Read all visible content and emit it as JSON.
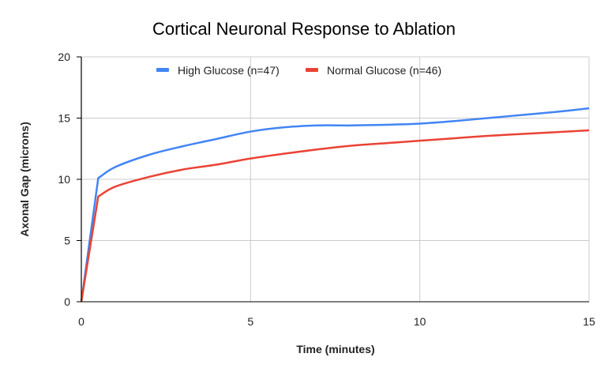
{
  "chart_data": {
    "type": "line",
    "title": "Cortical Neuronal Response to Ablation",
    "xlabel": "Time (minutes)",
    "ylabel": "Axonal Gap (microns)",
    "xlim": [
      0,
      15
    ],
    "ylim": [
      0,
      20
    ],
    "xticks": [
      "0",
      "5",
      "10",
      "15"
    ],
    "yticks": [
      "0",
      "5",
      "10",
      "15",
      "20"
    ],
    "grid": true,
    "legend_position": "top",
    "series": [
      {
        "name": "High Glucose (n=47)",
        "color": "#4285f4",
        "x": [
          0,
          0.5,
          1,
          2,
          3,
          4,
          5,
          6,
          7,
          8,
          9,
          10,
          11,
          12,
          13,
          14,
          15
        ],
        "y": [
          0,
          10.1,
          11.0,
          12.0,
          12.7,
          13.3,
          13.9,
          14.25,
          14.4,
          14.4,
          14.45,
          14.55,
          14.75,
          15.0,
          15.25,
          15.5,
          15.8
        ]
      },
      {
        "name": "Normal Glucose (n=46)",
        "color": "#ea4335",
        "x": [
          0,
          0.5,
          1,
          2,
          3,
          4,
          5,
          6,
          7,
          8,
          9,
          10,
          11,
          12,
          13,
          14,
          15
        ],
        "y": [
          0,
          8.6,
          9.4,
          10.2,
          10.8,
          11.2,
          11.7,
          12.1,
          12.45,
          12.75,
          12.95,
          13.15,
          13.35,
          13.55,
          13.7,
          13.85,
          14.0
        ]
      }
    ]
  }
}
